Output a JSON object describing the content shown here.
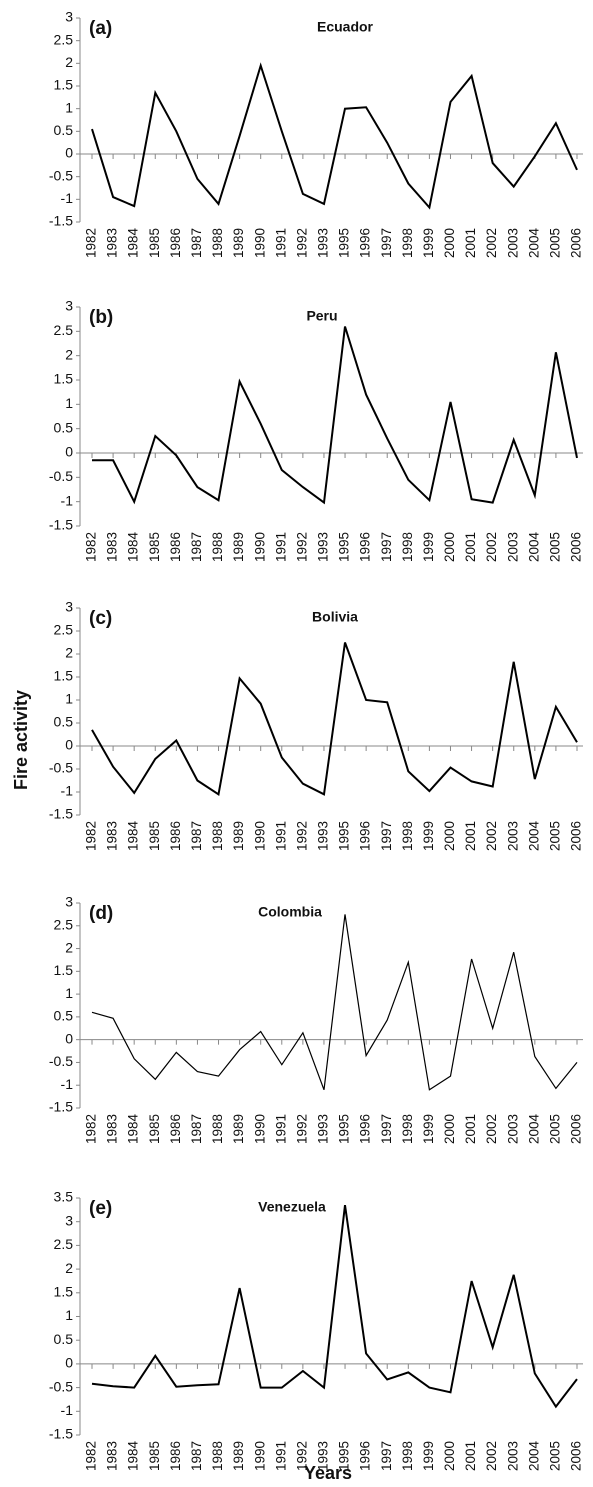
{
  "chart_data": [
    {
      "type": "line",
      "label": "(a)",
      "title": "Ecuador",
      "color": "#000000",
      "line_width": 2,
      "categories": [
        "1982",
        "1983",
        "1984",
        "1985",
        "1986",
        "1987",
        "1988",
        "1989",
        "1990",
        "1991",
        "1992",
        "1993",
        "1995",
        "1996",
        "1997",
        "1998",
        "1999",
        "2000",
        "2001",
        "2002",
        "2003",
        "2004",
        "2005",
        "2006"
      ],
      "values": [
        0.55,
        -0.95,
        -1.15,
        1.35,
        0.5,
        -0.55,
        -1.1,
        0.4,
        1.95,
        0.5,
        -0.88,
        -1.1,
        1.0,
        1.03,
        0.25,
        -0.65,
        -1.18,
        1.15,
        1.72,
        -0.2,
        -0.72,
        -0.05,
        0.68,
        -0.35
      ],
      "ylim": [
        -1.5,
        3
      ],
      "yticks": [
        3,
        2.5,
        2,
        1.5,
        1,
        0.5,
        0,
        -0.5,
        -1,
        -1.5
      ]
    },
    {
      "type": "line",
      "label": "(b)",
      "title": "Peru",
      "color": "#000000",
      "line_width": 2,
      "categories": [
        "1982",
        "1983",
        "1984",
        "1985",
        "1986",
        "1987",
        "1988",
        "1989",
        "1990",
        "1991",
        "1992",
        "1993",
        "1995",
        "1996",
        "1997",
        "1998",
        "1999",
        "2000",
        "2001",
        "2002",
        "2003",
        "2004",
        "2005",
        "2006"
      ],
      "values": [
        -0.15,
        -0.15,
        -1.0,
        0.35,
        -0.05,
        -0.7,
        -0.97,
        1.47,
        0.6,
        -0.35,
        -0.7,
        -1.02,
        2.6,
        1.2,
        0.3,
        -0.55,
        -0.97,
        1.05,
        -0.95,
        -1.02,
        0.27,
        -0.87,
        2.07,
        -0.1
      ],
      "ylim": [
        -1.5,
        3
      ],
      "yticks": [
        3,
        2.5,
        2,
        1.5,
        1,
        0.5,
        0,
        -0.5,
        -1,
        -1.5
      ]
    },
    {
      "type": "line",
      "label": "(c)",
      "title": "Bolivia",
      "ylabel": "Fire activity",
      "color": "#000000",
      "line_width": 2,
      "categories": [
        "1982",
        "1983",
        "1984",
        "1985",
        "1986",
        "1987",
        "1988",
        "1989",
        "1990",
        "1991",
        "1992",
        "1993",
        "1995",
        "1996",
        "1997",
        "1998",
        "1999",
        "2000",
        "2001",
        "2002",
        "2003",
        "2004",
        "2005",
        "2006"
      ],
      "values": [
        0.35,
        -0.45,
        -1.02,
        -0.28,
        0.12,
        -0.75,
        -1.05,
        1.47,
        0.92,
        -0.25,
        -0.82,
        -1.05,
        2.25,
        1.0,
        0.95,
        -0.55,
        -0.98,
        -0.47,
        -0.77,
        -0.88,
        1.83,
        -0.72,
        0.85,
        0.08
      ],
      "ylim": [
        -1.5,
        3
      ],
      "yticks": [
        3,
        2.5,
        2,
        1.5,
        1,
        0.5,
        0,
        -0.5,
        -1,
        -1.5
      ]
    },
    {
      "type": "line",
      "label": "(d)",
      "title": "Colombia",
      "color": "#000000",
      "line_width": 1.2,
      "categories": [
        "1982",
        "1983",
        "1984",
        "1985",
        "1986",
        "1987",
        "1988",
        "1989",
        "1990",
        "1991",
        "1992",
        "1993",
        "1995",
        "1996",
        "1997",
        "1998",
        "1999",
        "2000",
        "2001",
        "2002",
        "2003",
        "2004",
        "2005",
        "2006"
      ],
      "values": [
        0.6,
        0.47,
        -0.42,
        -0.87,
        -0.28,
        -0.7,
        -0.8,
        -0.22,
        0.18,
        -0.55,
        0.15,
        -1.1,
        2.75,
        -0.35,
        0.43,
        1.7,
        -1.1,
        -0.8,
        1.77,
        0.25,
        1.92,
        -0.37,
        -1.07,
        -0.5
      ],
      "ylim": [
        -1.5,
        3
      ],
      "yticks": [
        3,
        2.5,
        2,
        1.5,
        1,
        0.5,
        0,
        -0.5,
        -1,
        -1.5
      ]
    },
    {
      "type": "line",
      "label": "(e)",
      "title": "Venezuela",
      "xlabel": "Years",
      "color": "#000000",
      "line_width": 2,
      "categories": [
        "1982",
        "1983",
        "1984",
        "1985",
        "1986",
        "1987",
        "1988",
        "1989",
        "1990",
        "1991",
        "1992",
        "1993",
        "1995",
        "1996",
        "1997",
        "1998",
        "1999",
        "2000",
        "2001",
        "2002",
        "2003",
        "2004",
        "2005",
        "2006"
      ],
      "values": [
        -0.42,
        -0.47,
        -0.5,
        0.17,
        -0.48,
        -0.45,
        -0.43,
        1.6,
        -0.5,
        -0.5,
        -0.15,
        -0.5,
        3.35,
        0.22,
        -0.33,
        -0.18,
        -0.5,
        -0.6,
        1.75,
        0.35,
        1.88,
        -0.2,
        -0.9,
        -0.32
      ],
      "ylim": [
        -1.5,
        3.5
      ],
      "yticks": [
        3.5,
        3,
        2.5,
        2,
        1.5,
        1,
        0.5,
        0,
        -0.5,
        -1,
        -1.5
      ]
    }
  ]
}
